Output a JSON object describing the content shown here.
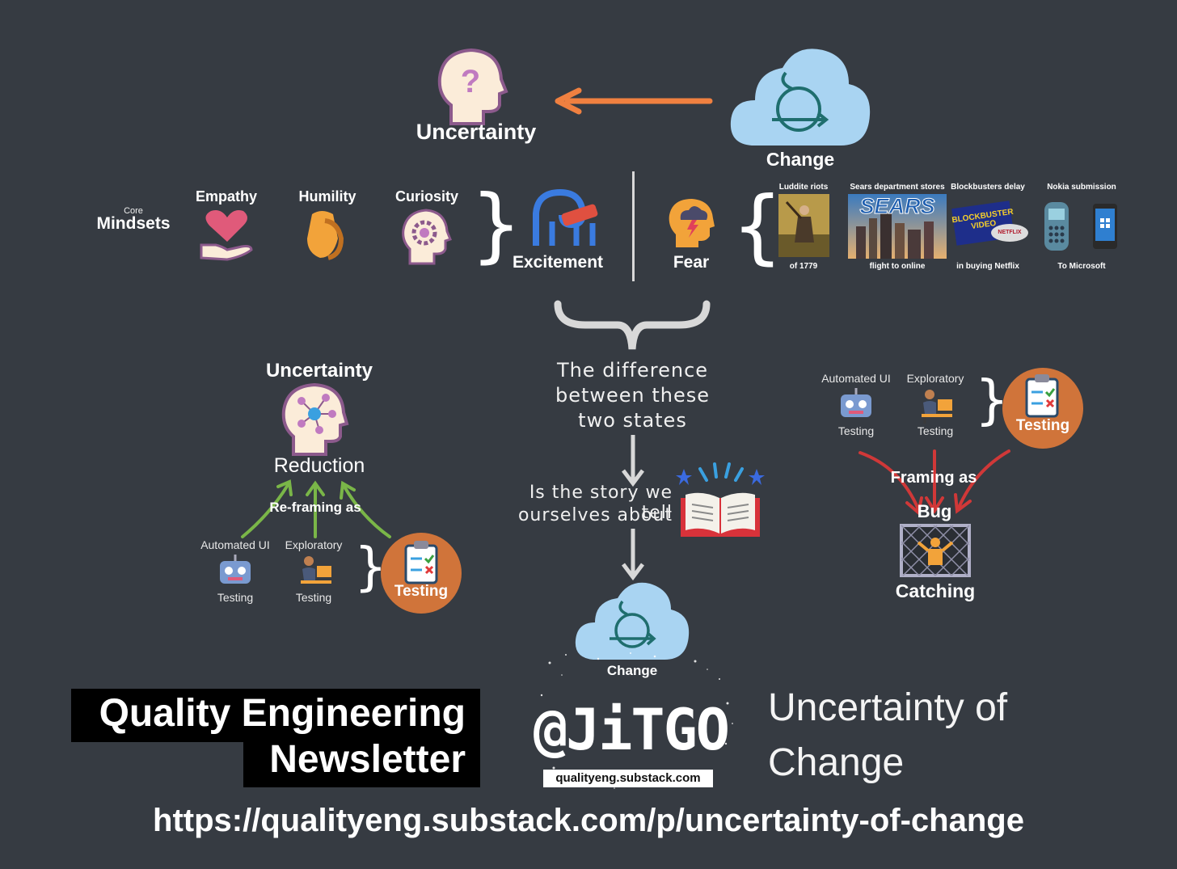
{
  "top": {
    "uncertainty_label": "Uncertainty",
    "change_label": "Change"
  },
  "mindsets": {
    "core_label": "Core",
    "mindsets_label": "Mindsets",
    "items": [
      {
        "label": "Empathy",
        "icon": "heart-hand-icon"
      },
      {
        "label": "Humility",
        "icon": "handshake-icon"
      },
      {
        "label": "Curiosity",
        "icon": "gear-head-icon"
      }
    ],
    "excitement_label": "Excitement",
    "fear_label": "Fear"
  },
  "examples": [
    {
      "top": "Luddite riots",
      "bottom": "of 1779"
    },
    {
      "top": "Sears department stores",
      "bottom": "flight to online",
      "logo": "SEARS"
    },
    {
      "top": "Blockbusters delay",
      "bottom": "in buying Netflix",
      "logo": "BLOCKBUSTER VIDEO",
      "logo2": "NETFLIX"
    },
    {
      "top": "Nokia submission",
      "bottom": "To Microsoft"
    }
  ],
  "center": {
    "difference_text": "The difference between these two states",
    "story_line1": "Is the story we tell",
    "story_line2": "ourselves about",
    "change_label": "Change"
  },
  "left": {
    "title_top": "Uncertainty",
    "title_bottom": "Reduction",
    "reframing": "Re-framing as",
    "auto_top": "Automated UI",
    "auto_bottom": "Testing",
    "expl_top": "Exploratory",
    "expl_bottom": "Testing",
    "testing": "Testing"
  },
  "right": {
    "auto_top": "Automated UI",
    "auto_bottom": "Testing",
    "expl_top": "Exploratory",
    "expl_bottom": "Testing",
    "testing": "Testing",
    "framing": "Framing as",
    "bug": "Bug",
    "catching": "Catching"
  },
  "footer": {
    "newsletter_line1": "Quality Engineering",
    "newsletter_line2": "Newsletter",
    "jitgo": "@JiTGO",
    "site": "qualityeng.substack.com",
    "article_line1": "Uncertainty of",
    "article_line2": "Change",
    "url": "https://qualityeng.substack.com/p/uncertainty-of-change"
  },
  "colors": {
    "background": "#363b42",
    "orange_arrow": "#f08040",
    "green_arrow": "#7ab648",
    "red_arrow": "#d03838",
    "testing_circle": "#d0743a",
    "cloud": "#a9d4f2"
  }
}
